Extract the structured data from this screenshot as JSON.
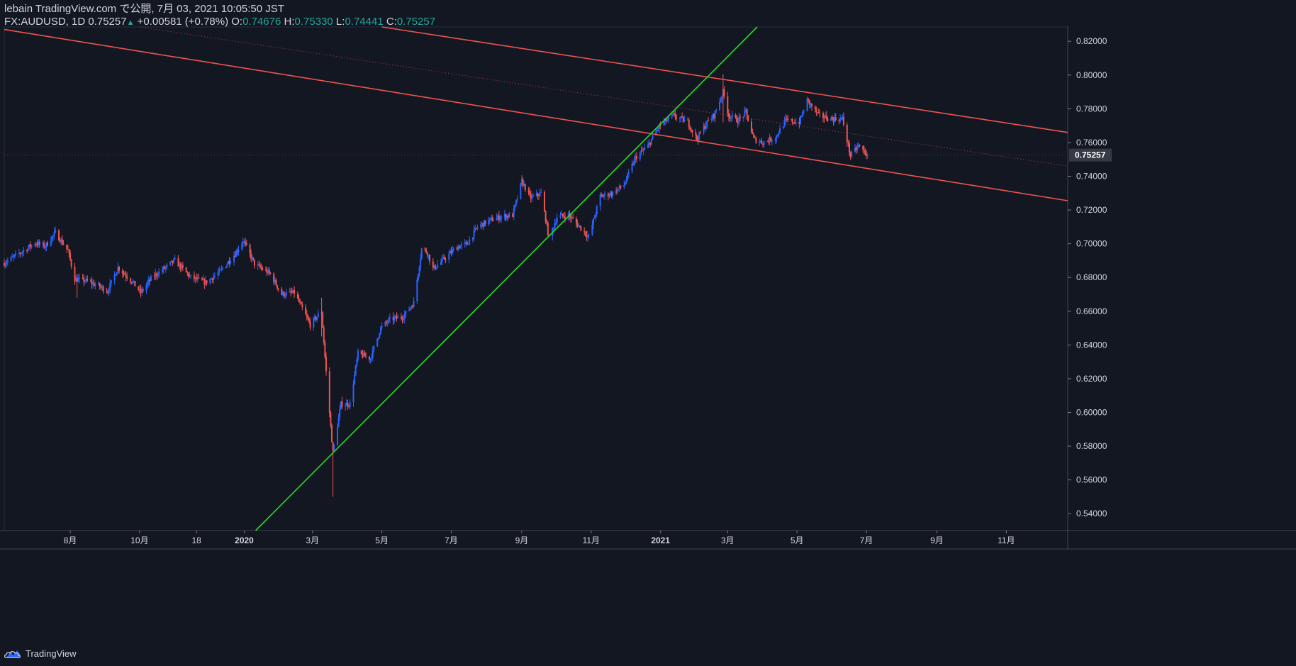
{
  "header": {
    "publish_line": "lebain TradingView.com で公開, 7月 03, 2021 10:05:50 JST",
    "symbol": "FX:AUDUSD, 1D",
    "last": "0.75257",
    "change_arrow": "▲",
    "change": "+0.00581 (+0.78%)",
    "o_label": "O:",
    "o_value": "0.74676",
    "h_label": "H:",
    "h_value": "0.75330",
    "l_label": "L:",
    "l_value": "0.74441",
    "c_label": "C:",
    "c_value": "0.75257"
  },
  "footer": {
    "brand": "TradingView",
    "logo_icon": "tradingview-cloud-icon"
  },
  "colors": {
    "background": "#131722",
    "up": "#2962ff",
    "down": "#ef5350",
    "channel": "#f05350",
    "trendline": "#22e022",
    "axis_text": "#d1d4dc",
    "price_label_bg": "#363a45"
  },
  "chart_data": {
    "type": "candlestick",
    "symbol": "FX:AUDUSD",
    "interval": "1D",
    "y_axis": {
      "side": "right",
      "range": [
        0.53,
        0.8285
      ],
      "ticks": [
        "0.54000",
        "0.56000",
        "0.58000",
        "0.60000",
        "0.62000",
        "0.64000",
        "0.66000",
        "0.68000",
        "0.70000",
        "0.72000",
        "0.74000",
        "0.76000",
        "0.78000",
        "0.80000",
        "0.82000"
      ],
      "current_price_label": "0.75257"
    },
    "x_axis": {
      "range": [
        "2019-06-04",
        "2021-12-25"
      ],
      "ticks": [
        {
          "date": "2019-08-01",
          "label": "8月"
        },
        {
          "date": "2019-10-01",
          "label": "10月"
        },
        {
          "date": "2019-11-20",
          "label": "18"
        },
        {
          "date": "2020-01-01",
          "label": "2020"
        },
        {
          "date": "2020-03-01",
          "label": "3月"
        },
        {
          "date": "2020-05-01",
          "label": "5月"
        },
        {
          "date": "2020-07-01",
          "label": "7月"
        },
        {
          "date": "2020-09-01",
          "label": "9月"
        },
        {
          "date": "2020-11-01",
          "label": "11月"
        },
        {
          "date": "2021-01-01",
          "label": "2021"
        },
        {
          "date": "2021-03-01",
          "label": "3月"
        },
        {
          "date": "2021-05-01",
          "label": "5月"
        },
        {
          "date": "2021-07-01",
          "label": "7月"
        },
        {
          "date": "2021-09-01",
          "label": "9月"
        },
        {
          "date": "2021-11-01",
          "label": "11月"
        }
      ]
    },
    "close_path": [
      [
        "2019-06-04",
        0.6885
      ],
      [
        "2019-06-20",
        0.6955
      ],
      [
        "2019-07-01",
        0.7005
      ],
      [
        "2019-07-10",
        0.6985
      ],
      [
        "2019-07-19",
        0.7065
      ],
      [
        "2019-07-30",
        0.696
      ],
      [
        "2019-08-05",
        0.679
      ],
      [
        "2019-08-15",
        0.678
      ],
      [
        "2019-08-26",
        0.675
      ],
      [
        "2019-09-03",
        0.672
      ],
      [
        "2019-09-12",
        0.686
      ],
      [
        "2019-09-24",
        0.678
      ],
      [
        "2019-10-02",
        0.671
      ],
      [
        "2019-10-12",
        0.68
      ],
      [
        "2019-10-22",
        0.685
      ],
      [
        "2019-11-01",
        0.69
      ],
      [
        "2019-11-15",
        0.68
      ],
      [
        "2019-11-28",
        0.677
      ],
      [
        "2019-12-10",
        0.683
      ],
      [
        "2019-12-24",
        0.694
      ],
      [
        "2019-12-31",
        0.702
      ],
      [
        "2020-01-10",
        0.688
      ],
      [
        "2020-01-24",
        0.682
      ],
      [
        "2020-02-03",
        0.67
      ],
      [
        "2020-02-14",
        0.671
      ],
      [
        "2020-02-28",
        0.652
      ],
      [
        "2020-03-09",
        0.66
      ],
      [
        "2020-03-13",
        0.624
      ],
      [
        "2020-03-19",
        0.576
      ],
      [
        "2020-03-26",
        0.605
      ],
      [
        "2020-04-03",
        0.605
      ],
      [
        "2020-04-10",
        0.635
      ],
      [
        "2020-04-21",
        0.632
      ],
      [
        "2020-04-30",
        0.65
      ],
      [
        "2020-05-08",
        0.655
      ],
      [
        "2020-05-20",
        0.657
      ],
      [
        "2020-05-29",
        0.665
      ],
      [
        "2020-06-05",
        0.697
      ],
      [
        "2020-06-10",
        0.695
      ],
      [
        "2020-06-15",
        0.685
      ],
      [
        "2020-06-23",
        0.69
      ],
      [
        "2020-07-06",
        0.698
      ],
      [
        "2020-07-15",
        0.7
      ],
      [
        "2020-07-24",
        0.71
      ],
      [
        "2020-08-04",
        0.714
      ],
      [
        "2020-08-14",
        0.716
      ],
      [
        "2020-08-24",
        0.717
      ],
      [
        "2020-09-01",
        0.737
      ],
      [
        "2020-09-09",
        0.727
      ],
      [
        "2020-09-18",
        0.73
      ],
      [
        "2020-09-25",
        0.703
      ],
      [
        "2020-10-02",
        0.716
      ],
      [
        "2020-10-12",
        0.717
      ],
      [
        "2020-10-22",
        0.71
      ],
      [
        "2020-10-30",
        0.704
      ],
      [
        "2020-11-09",
        0.728
      ],
      [
        "2020-11-20",
        0.73
      ],
      [
        "2020-11-30",
        0.735
      ],
      [
        "2020-12-10",
        0.751
      ],
      [
        "2020-12-21",
        0.758
      ],
      [
        "2020-12-31",
        0.77
      ],
      [
        "2021-01-12",
        0.776
      ],
      [
        "2021-01-25",
        0.772
      ],
      [
        "2021-02-02",
        0.762
      ],
      [
        "2021-02-10",
        0.771
      ],
      [
        "2021-02-17",
        0.776
      ],
      [
        "2021-02-25",
        0.79
      ],
      [
        "2021-03-02",
        0.776
      ],
      [
        "2021-03-10",
        0.773
      ],
      [
        "2021-03-17",
        0.778
      ],
      [
        "2021-03-24",
        0.762
      ],
      [
        "2021-04-01",
        0.76
      ],
      [
        "2021-04-12",
        0.763
      ],
      [
        "2021-04-21",
        0.773
      ],
      [
        "2021-05-03",
        0.772
      ],
      [
        "2021-05-10",
        0.785
      ],
      [
        "2021-05-20",
        0.776
      ],
      [
        "2021-06-01",
        0.774
      ],
      [
        "2021-06-10",
        0.774
      ],
      [
        "2021-06-17",
        0.752
      ],
      [
        "2021-06-24",
        0.758
      ],
      [
        "2021-07-02",
        0.7526
      ]
    ],
    "drawings": [
      {
        "name": "upper-channel-line",
        "color": "#f05350",
        "p1": [
          "2020-05-01",
          0.8285
        ],
        "p2": [
          "2021-12-25",
          0.766
        ]
      },
      {
        "name": "lower-channel-line",
        "color": "#f05350",
        "p1": [
          "2019-06-04",
          0.827
        ],
        "p2": [
          "2021-12-25",
          0.7255
        ]
      },
      {
        "name": "mid-channel-dotted-line",
        "color": "#f05350",
        "p1": [
          "2019-10-01",
          0.8285
        ],
        "p2": [
          "2021-12-25",
          0.746
        ]
      },
      {
        "name": "support-trendline",
        "color": "#22e022",
        "p1": [
          "2020-01-11",
          0.53
        ],
        "p2": [
          "2021-03-27",
          0.8285
        ]
      }
    ]
  }
}
